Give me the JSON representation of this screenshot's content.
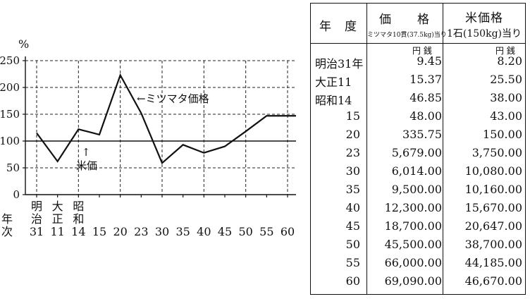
{
  "chart_data": {
    "type": "line",
    "title": "",
    "ylabel": "%",
    "xlabel": "年次",
    "ylim": [
      0,
      250
    ],
    "yticks": [
      0,
      50,
      100,
      150,
      200,
      250
    ],
    "grid": true,
    "x_tick_labels": [
      "明治31",
      "大正11",
      "昭和14",
      "15",
      "20",
      "23",
      "30",
      "35",
      "40",
      "45",
      "50",
      "55",
      "60"
    ],
    "axis_label_chars": [
      "年",
      "次"
    ],
    "series": [
      {
        "name": "ミツマタ価格",
        "values": [
          115,
          62,
          122,
          112,
          223,
          152,
          59,
          93,
          78,
          90,
          118,
          147,
          147
        ]
      },
      {
        "name": "米価",
        "values": [
          100,
          100,
          100,
          100,
          100,
          100,
          100,
          100,
          100,
          100,
          100,
          100,
          100
        ]
      }
    ],
    "annotations": [
      {
        "text": "←ミツマタ価格"
      },
      {
        "text": "↑"
      },
      {
        "text": "米価"
      }
    ]
  },
  "table": {
    "headers": {
      "year": "年　度",
      "mitsumata": "価　　格",
      "mitsumata_sub": "ミツマタ10貫(37.5kg)当り",
      "rice": "米価格",
      "rice_sub": "1石(150kg)当り"
    },
    "units": {
      "mitsumata": "円 銭",
      "rice": "円 銭"
    },
    "rows": [
      {
        "year": "明治31年",
        "mitsumata": "9.45",
        "rice": "8.20"
      },
      {
        "year": "大正11",
        "mitsumata": "15.37",
        "rice": "25.50"
      },
      {
        "year": "昭和14",
        "mitsumata": "46.85",
        "rice": "38.00"
      },
      {
        "year": "15",
        "mitsumata": "48.00",
        "rice": "43.00"
      },
      {
        "year": "20",
        "mitsumata": "335.75",
        "rice": "150.00"
      },
      {
        "year": "23",
        "mitsumata": "5,679.00",
        "rice": "3,750.00"
      },
      {
        "year": "30",
        "mitsumata": "6,014.00",
        "rice": "10,080.00"
      },
      {
        "year": "35",
        "mitsumata": "9,500.00",
        "rice": "10,160.00"
      },
      {
        "year": "40",
        "mitsumata": "12,300.00",
        "rice": "15,670.00"
      },
      {
        "year": "45",
        "mitsumata": "18,700.00",
        "rice": "20,647.00"
      },
      {
        "year": "50",
        "mitsumata": "45,500.00",
        "rice": "38,700.00"
      },
      {
        "year": "55",
        "mitsumata": "66,000.00",
        "rice": "44,185.00"
      },
      {
        "year": "60",
        "mitsumata": "69,090.00",
        "rice": "46,670.00"
      }
    ]
  }
}
